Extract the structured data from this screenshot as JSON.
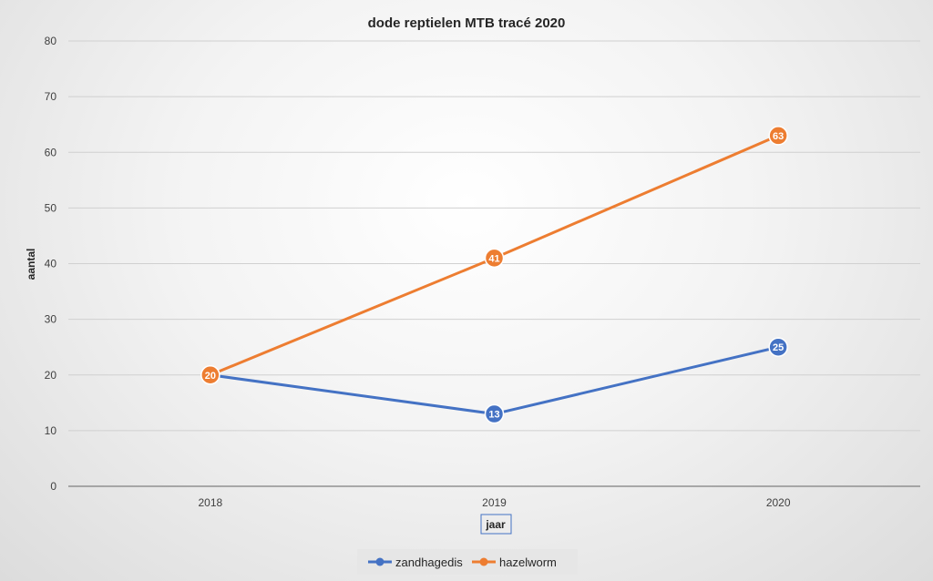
{
  "chart_data": {
    "type": "line",
    "title": "dode reptielen MTB tracé 2020",
    "xlabel": "jaar",
    "ylabel": "aantal",
    "categories": [
      "2018",
      "2019",
      "2020"
    ],
    "ylim": [
      0,
      80
    ],
    "yticks": [
      0,
      10,
      20,
      30,
      40,
      50,
      60,
      70,
      80
    ],
    "grid": true,
    "legend_position": "bottom",
    "series": [
      {
        "name": "zandhagedis",
        "values": [
          20,
          13,
          25
        ],
        "color": "#4472C4",
        "data_labels": [
          "",
          "13",
          "25"
        ]
      },
      {
        "name": "hazelworm",
        "values": [
          20,
          41,
          63
        ],
        "color": "#ED7D31",
        "data_labels": [
          "20",
          "41",
          "63"
        ]
      }
    ]
  }
}
